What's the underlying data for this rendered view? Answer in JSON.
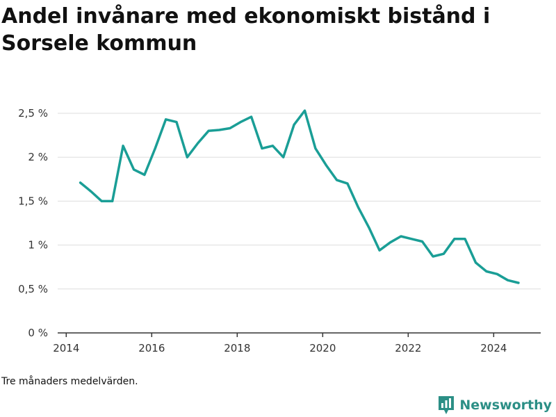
{
  "title": "Andel invånare med ekonomiskt bistånd i Sorsele kommun",
  "footnote": "Tre månaders medelvärden.",
  "brand": "Newsworthy",
  "colors": {
    "line": "#1a9e96",
    "grid": "#dddddd",
    "axis": "#333333",
    "brand": "#2c8f86"
  },
  "chart_data": {
    "type": "line",
    "title": "Andel invånare med ekonomiskt bistånd i Sorsele kommun",
    "xlabel": "",
    "ylabel": "",
    "xlim": [
      2013.8,
      2025.1
    ],
    "ylim": [
      0,
      2.5
    ],
    "xticks": [
      2014,
      2016,
      2018,
      2020,
      2022,
      2024
    ],
    "yticks": [
      {
        "value": 0,
        "label": "0 %"
      },
      {
        "value": 0.5,
        "label": "0,5 %"
      },
      {
        "value": 1,
        "label": "1 %"
      },
      {
        "value": 1.5,
        "label": "1,5 %"
      },
      {
        "value": 2,
        "label": "2 %"
      },
      {
        "value": 2.5,
        "label": "2,5 %"
      }
    ],
    "grid": true,
    "series": [
      {
        "x": [
          2014.33,
          2014.58,
          2014.83,
          2015.08,
          2015.33,
          2015.58,
          2015.83,
          2016.08,
          2016.33,
          2016.58,
          2016.83,
          2017.08,
          2017.33,
          2017.58,
          2017.83,
          2018.08,
          2018.33,
          2018.58,
          2018.83,
          2019.08,
          2019.33,
          2019.58,
          2019.83,
          2020.08,
          2020.33,
          2020.58,
          2020.83,
          2021.08,
          2021.33,
          2021.58,
          2021.83,
          2022.08,
          2022.33,
          2022.58,
          2022.83,
          2023.08,
          2023.33,
          2023.58,
          2023.83,
          2024.08,
          2024.33,
          2024.58
        ],
        "values": [
          1.71,
          1.61,
          1.5,
          1.5,
          2.13,
          1.86,
          1.8,
          2.1,
          2.43,
          2.4,
          2.0,
          2.16,
          2.3,
          2.31,
          2.33,
          2.4,
          2.46,
          2.1,
          2.13,
          2.0,
          2.37,
          2.53,
          2.1,
          1.91,
          1.74,
          1.7,
          1.43,
          1.2,
          0.94,
          1.03,
          1.1,
          1.07,
          1.04,
          0.87,
          0.9,
          1.07,
          1.07,
          0.8,
          0.7,
          0.67,
          0.6,
          0.57
        ]
      }
    ]
  }
}
